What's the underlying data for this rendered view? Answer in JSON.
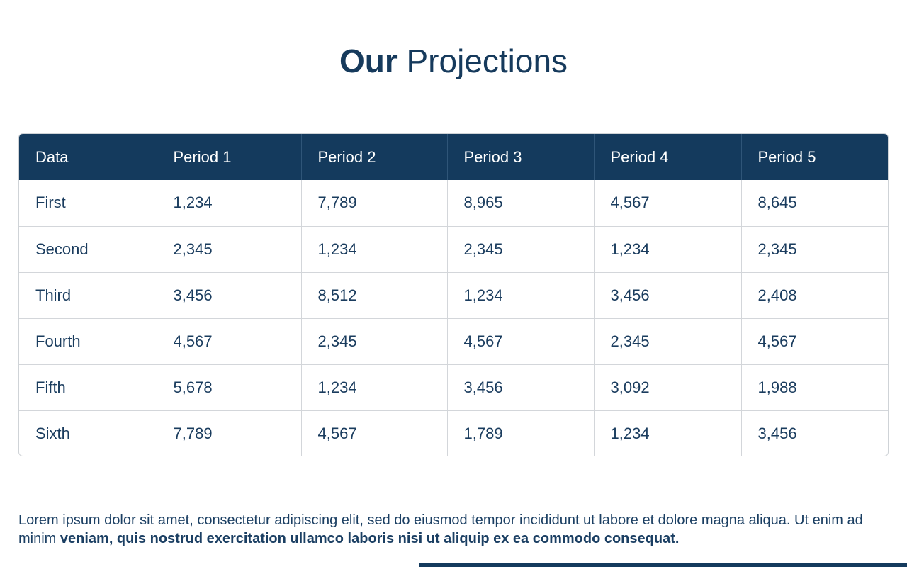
{
  "title": {
    "bold": "Our",
    "regular": "Projections"
  },
  "table": {
    "headers": [
      "Data",
      "Period 1",
      "Period 2",
      "Period 3",
      "Period 4",
      "Period 5"
    ],
    "rows": [
      [
        "First",
        "1,234",
        "7,789",
        "8,965",
        "4,567",
        "8,645"
      ],
      [
        "Second",
        "2,345",
        "1,234",
        "2,345",
        "1,234",
        "2,345"
      ],
      [
        "Third",
        "3,456",
        "8,512",
        "1,234",
        "3,456",
        "2,408"
      ],
      [
        "Fourth",
        "4,567",
        "2,345",
        "4,567",
        "2,345",
        "4,567"
      ],
      [
        "Fifth",
        "5,678",
        "1,234",
        "3,456",
        "3,092",
        "1,988"
      ],
      [
        "Sixth",
        "7,789",
        "4,567",
        "1,789",
        "1,234",
        "3,456"
      ]
    ]
  },
  "paragraph": {
    "regular": "Lorem ipsum dolor sit amet, consectetur adipiscing elit, sed do eiusmod tempor incididunt ut labore et dolore magna aliqua. Ut enim ad minim ",
    "bold": "veniam, quis nostrud exercitation ullamco laboris nisi ut aliquip ex ea commodo consequat."
  },
  "colors": {
    "primary": "#143a5d",
    "text": "#1a3c5e",
    "border": "#d3d6da"
  }
}
